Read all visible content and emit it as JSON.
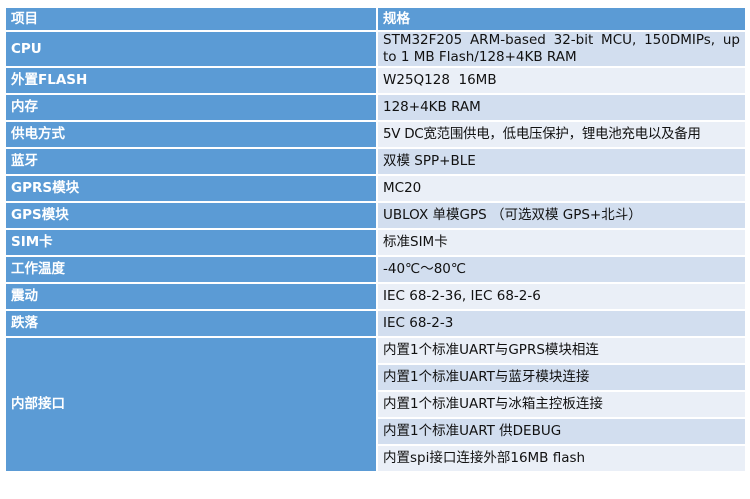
{
  "header": {
    "col1": "项目",
    "col2": "规格"
  },
  "rows": [
    {
      "label": "CPU",
      "value": "STM32F205 ARM-based 32-bit MCU, 150DMIPs, up to 1 MB Flash/128+4KB RAM"
    },
    {
      "label": "外置FLASH",
      "value": "W25Q128  16MB"
    },
    {
      "label": "内存",
      "value": "128+4KB RAM"
    },
    {
      "label": "供电方式",
      "value": "5V DC宽范围供电，低电压保护，锂电池充电以及备用"
    },
    {
      "label": "蓝牙",
      "value": "双模 SPP+BLE"
    },
    {
      "label": "GPRS模块",
      "value": "MC20"
    },
    {
      "label": "GPS模块",
      "value": "UBLOX 单模GPS （可选双模 GPS+北斗）"
    },
    {
      "label": "SIM卡",
      "value": "标准SIM卡"
    },
    {
      "label": "工作温度",
      "value": "-40℃～80℃"
    },
    {
      "label": "震动",
      "value": "IEC 68-2-36, IEC 68-2-6"
    },
    {
      "label": "跌落",
      "value": "IEC 68-2-3"
    }
  ],
  "interfaces": {
    "label": "内部接口",
    "values": [
      "内置1个标准UART与GPRS模块相连",
      "内置1个标准UART与蓝牙模块连接",
      "内置1个标准UART与冰箱主控板连接",
      "内置1个标准UART 供DEBUG",
      "内置spi接口连接外部16MB flash"
    ]
  },
  "colors": {
    "header": "#5b9bd5",
    "row_dark": "#d2deef",
    "row_light": "#eaeff7"
  }
}
